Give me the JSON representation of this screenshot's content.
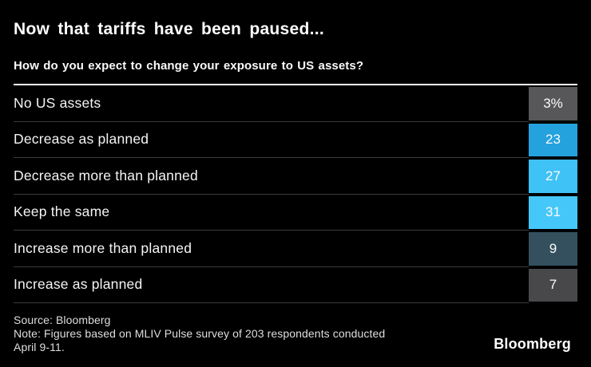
{
  "header": {
    "title": "Now that tariffs have been paused...",
    "question": "How do you expect to change your exposure to US assets?"
  },
  "chart_data": {
    "type": "bar",
    "title": "Now that tariffs have been paused...",
    "subtitle": "How do you expect to change your exposure to US assets?",
    "unit": "%",
    "categories": [
      "No US assets",
      "Decrease as planned",
      "Decrease more than planned",
      "Keep the same",
      "Increase more than planned",
      "Increase as planned"
    ],
    "values": [
      3,
      23,
      27,
      31,
      9,
      7
    ],
    "value_labels": [
      "3%",
      "23",
      "27",
      "31",
      "9",
      "7"
    ],
    "cell_colors": [
      "#57575a",
      "#24a2de",
      "#3fc2f6",
      "#45c8f9",
      "#34505f",
      "#48484a"
    ],
    "layout": {
      "orientation": "horizontal rows, equal-width value cells shaded by value",
      "grid": "off",
      "legend": "none",
      "value_range": [
        0,
        31
      ]
    }
  },
  "footer": {
    "source": "Source: Bloomberg",
    "note_line1": "Note: Figures based on MLIV Pulse survey of 203 respondents conducted",
    "note_line2": "April 9-11.",
    "brand": "Bloomberg"
  },
  "colors": {
    "background": "#000000",
    "header_divider": "#ffffff",
    "row_separator": "#3b3b3d",
    "title_text": "#ffffff",
    "label_text": "#f5f5f5",
    "footer_text": "#dedede"
  }
}
